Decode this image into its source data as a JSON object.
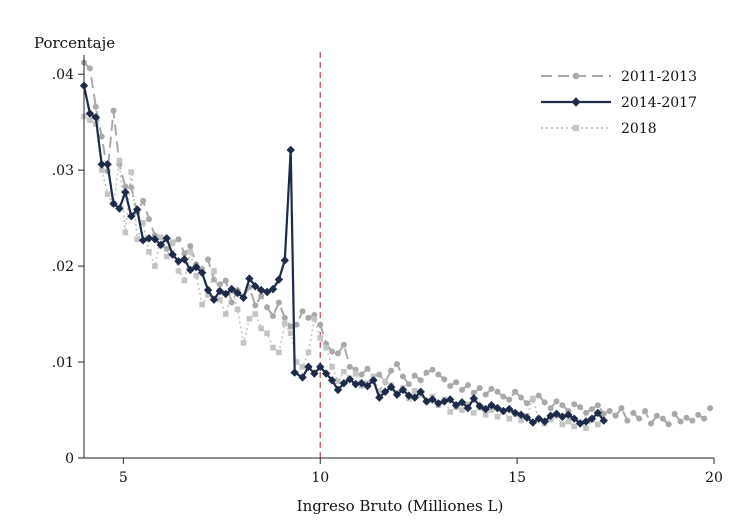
{
  "chart_data": {
    "type": "line",
    "ylabel": "Porcentaje",
    "xlabel": "Ingreso Bruto (Milliones L)",
    "xlim": [
      4,
      20
    ],
    "ylim": [
      0,
      0.042
    ],
    "x_ticks": [
      {
        "value": 5,
        "label": "5"
      },
      {
        "value": 10,
        "label": "10"
      },
      {
        "value": 15,
        "label": "15"
      },
      {
        "value": 20,
        "label": "20"
      }
    ],
    "y_ticks": [
      {
        "value": 0,
        "label": "0"
      },
      {
        "value": 0.01,
        "label": ".01"
      },
      {
        "value": 0.02,
        "label": ".02"
      },
      {
        "value": 0.03,
        "label": ".03"
      },
      {
        "value": 0.04,
        "label": ".04"
      }
    ],
    "reference_line": {
      "x": 10,
      "style": "dashed",
      "color": "#c0505a"
    },
    "legend_position": "top-right",
    "grid": false,
    "series": [
      {
        "name": "2011-2013",
        "color": "#a8a8a8",
        "line_style": "dashed",
        "marker": "circle",
        "points": [
          [
            4.0,
            0.0412
          ],
          [
            4.15,
            0.0406
          ],
          [
            4.3,
            0.0366
          ],
          [
            4.45,
            0.0335
          ],
          [
            4.6,
            0.0299
          ],
          [
            4.75,
            0.0362
          ],
          [
            4.9,
            0.0306
          ],
          [
            5.05,
            0.0283
          ],
          [
            5.2,
            0.0282
          ],
          [
            5.35,
            0.0256
          ],
          [
            5.5,
            0.0268
          ],
          [
            5.65,
            0.0249
          ],
          [
            5.8,
            0.0232
          ],
          [
            5.95,
            0.0222
          ],
          [
            6.1,
            0.0218
          ],
          [
            6.25,
            0.0224
          ],
          [
            6.4,
            0.0228
          ],
          [
            6.55,
            0.0213
          ],
          [
            6.7,
            0.0221
          ],
          [
            6.85,
            0.0202
          ],
          [
            7.0,
            0.0197
          ],
          [
            7.15,
            0.0207
          ],
          [
            7.3,
            0.0186
          ],
          [
            7.45,
            0.0181
          ],
          [
            7.6,
            0.0185
          ],
          [
            7.75,
            0.0162
          ],
          [
            7.9,
            0.0175
          ],
          [
            8.05,
            0.0168
          ],
          [
            8.2,
            0.0178
          ],
          [
            8.35,
            0.0159
          ],
          [
            8.5,
            0.0169
          ],
          [
            8.65,
            0.0157
          ],
          [
            8.8,
            0.0148
          ],
          [
            8.95,
            0.0162
          ],
          [
            9.1,
            0.0146
          ],
          [
            9.25,
            0.0137
          ],
          [
            9.4,
            0.0139
          ],
          [
            9.55,
            0.0153
          ],
          [
            9.7,
            0.0146
          ],
          [
            9.85,
            0.0149
          ],
          [
            10.0,
            0.0139
          ],
          [
            10.15,
            0.0119
          ],
          [
            10.3,
            0.0111
          ],
          [
            10.45,
            0.0109
          ],
          [
            10.6,
            0.0118
          ],
          [
            10.75,
            0.0095
          ],
          [
            10.9,
            0.0092
          ],
          [
            11.05,
            0.0087
          ],
          [
            11.2,
            0.0093
          ],
          [
            11.35,
            0.0085
          ],
          [
            11.5,
            0.0087
          ],
          [
            11.65,
            0.0079
          ],
          [
            11.8,
            0.0091
          ],
          [
            11.95,
            0.0098
          ],
          [
            12.1,
            0.0085
          ],
          [
            12.25,
            0.0077
          ],
          [
            12.4,
            0.0086
          ],
          [
            12.55,
            0.0081
          ],
          [
            12.7,
            0.0089
          ],
          [
            12.85,
            0.0092
          ],
          [
            13.0,
            0.0087
          ],
          [
            13.15,
            0.0082
          ],
          [
            13.3,
            0.0075
          ],
          [
            13.45,
            0.0079
          ],
          [
            13.6,
            0.0071
          ],
          [
            13.75,
            0.0076
          ],
          [
            13.9,
            0.0068
          ],
          [
            14.05,
            0.0073
          ],
          [
            14.2,
            0.0066
          ],
          [
            14.35,
            0.0072
          ],
          [
            14.5,
            0.0069
          ],
          [
            14.65,
            0.0064
          ],
          [
            14.8,
            0.0061
          ],
          [
            14.95,
            0.0069
          ],
          [
            15.1,
            0.0063
          ],
          [
            15.25,
            0.0057
          ],
          [
            15.4,
            0.0061
          ],
          [
            15.55,
            0.0065
          ],
          [
            15.7,
            0.0058
          ],
          [
            15.85,
            0.0052
          ],
          [
            16.0,
            0.0059
          ],
          [
            16.15,
            0.0055
          ],
          [
            16.3,
            0.0049
          ],
          [
            16.45,
            0.0056
          ],
          [
            16.6,
            0.0053
          ],
          [
            16.75,
            0.0047
          ],
          [
            16.9,
            0.0051
          ],
          [
            17.05,
            0.0055
          ],
          [
            17.2,
            0.0046
          ],
          [
            17.35,
            0.0049
          ],
          [
            17.5,
            0.0044
          ],
          [
            17.65,
            0.0052
          ],
          [
            17.8,
            0.0039
          ],
          [
            17.95,
            0.0047
          ],
          [
            18.1,
            0.0041
          ],
          [
            18.25,
            0.0049
          ],
          [
            18.4,
            0.0036
          ],
          [
            18.55,
            0.0044
          ],
          [
            18.7,
            0.0041
          ],
          [
            18.85,
            0.0035
          ],
          [
            19.0,
            0.0046
          ],
          [
            19.15,
            0.0038
          ],
          [
            19.3,
            0.0042
          ],
          [
            19.45,
            0.0039
          ],
          [
            19.6,
            0.0045
          ],
          [
            19.75,
            0.0041
          ],
          [
            19.9,
            0.0052
          ]
        ]
      },
      {
        "name": "2014-2017",
        "color": "#1c2b4a",
        "line_style": "solid",
        "marker": "diamond",
        "points": [
          [
            4.0,
            0.0388
          ],
          [
            4.15,
            0.0359
          ],
          [
            4.3,
            0.0355
          ],
          [
            4.45,
            0.0306
          ],
          [
            4.6,
            0.0306
          ],
          [
            4.75,
            0.0265
          ],
          [
            4.9,
            0.026
          ],
          [
            5.05,
            0.0277
          ],
          [
            5.2,
            0.0252
          ],
          [
            5.35,
            0.0259
          ],
          [
            5.5,
            0.0227
          ],
          [
            5.65,
            0.0229
          ],
          [
            5.8,
            0.0228
          ],
          [
            5.95,
            0.0222
          ],
          [
            6.1,
            0.0229
          ],
          [
            6.25,
            0.0212
          ],
          [
            6.4,
            0.0205
          ],
          [
            6.55,
            0.0207
          ],
          [
            6.7,
            0.0196
          ],
          [
            6.85,
            0.0199
          ],
          [
            7.0,
            0.0193
          ],
          [
            7.15,
            0.0175
          ],
          [
            7.3,
            0.0165
          ],
          [
            7.45,
            0.0174
          ],
          [
            7.6,
            0.0171
          ],
          [
            7.75,
            0.0176
          ],
          [
            7.9,
            0.0172
          ],
          [
            8.05,
            0.0167
          ],
          [
            8.2,
            0.0187
          ],
          [
            8.35,
            0.0179
          ],
          [
            8.5,
            0.0175
          ],
          [
            8.65,
            0.0173
          ],
          [
            8.8,
            0.0176
          ],
          [
            8.95,
            0.0186
          ],
          [
            9.1,
            0.0206
          ],
          [
            9.25,
            0.0321
          ],
          [
            9.35,
            0.0089
          ],
          [
            9.55,
            0.0084
          ],
          [
            9.7,
            0.0095
          ],
          [
            9.85,
            0.0088
          ],
          [
            10.0,
            0.0095
          ],
          [
            10.15,
            0.0088
          ],
          [
            10.3,
            0.0081
          ],
          [
            10.45,
            0.0071
          ],
          [
            10.6,
            0.0078
          ],
          [
            10.75,
            0.0082
          ],
          [
            10.9,
            0.0077
          ],
          [
            11.05,
            0.0078
          ],
          [
            11.2,
            0.0075
          ],
          [
            11.35,
            0.0081
          ],
          [
            11.5,
            0.0063
          ],
          [
            11.65,
            0.0069
          ],
          [
            11.8,
            0.0074
          ],
          [
            11.95,
            0.0066
          ],
          [
            12.1,
            0.0071
          ],
          [
            12.25,
            0.0065
          ],
          [
            12.4,
            0.0063
          ],
          [
            12.55,
            0.0069
          ],
          [
            12.7,
            0.0059
          ],
          [
            12.85,
            0.0061
          ],
          [
            13.0,
            0.0057
          ],
          [
            13.15,
            0.0059
          ],
          [
            13.3,
            0.0061
          ],
          [
            13.45,
            0.0055
          ],
          [
            13.6,
            0.0058
          ],
          [
            13.75,
            0.0052
          ],
          [
            13.9,
            0.0062
          ],
          [
            14.05,
            0.0054
          ],
          [
            14.2,
            0.0051
          ],
          [
            14.35,
            0.0055
          ],
          [
            14.5,
            0.0052
          ],
          [
            14.65,
            0.0049
          ],
          [
            14.8,
            0.0051
          ],
          [
            14.95,
            0.0047
          ],
          [
            15.1,
            0.0045
          ],
          [
            15.25,
            0.0042
          ],
          [
            15.4,
            0.0037
          ],
          [
            15.55,
            0.0041
          ],
          [
            15.7,
            0.0038
          ],
          [
            15.85,
            0.0044
          ],
          [
            16.0,
            0.0046
          ],
          [
            16.15,
            0.0043
          ],
          [
            16.3,
            0.0045
          ],
          [
            16.45,
            0.0041
          ],
          [
            16.6,
            0.0036
          ],
          [
            16.75,
            0.0038
          ],
          [
            16.9,
            0.0041
          ],
          [
            17.05,
            0.0047
          ],
          [
            17.2,
            0.0039
          ]
        ]
      },
      {
        "name": "2018",
        "color": "#c4c4c4",
        "line_style": "dotted",
        "marker": "square",
        "points": [
          [
            4.0,
            0.0356
          ],
          [
            4.15,
            0.0352
          ],
          [
            4.3,
            0.0348
          ],
          [
            4.45,
            0.03
          ],
          [
            4.6,
            0.0275
          ],
          [
            4.75,
            0.0265
          ],
          [
            4.9,
            0.031
          ],
          [
            5.05,
            0.0235
          ],
          [
            5.2,
            0.0298
          ],
          [
            5.35,
            0.0228
          ],
          [
            5.5,
            0.0245
          ],
          [
            5.65,
            0.0215
          ],
          [
            5.8,
            0.02
          ],
          [
            5.95,
            0.023
          ],
          [
            6.1,
            0.021
          ],
          [
            6.25,
            0.0225
          ],
          [
            6.4,
            0.0195
          ],
          [
            6.55,
            0.0185
          ],
          [
            6.7,
            0.0215
          ],
          [
            6.85,
            0.019
          ],
          [
            7.0,
            0.016
          ],
          [
            7.15,
            0.017
          ],
          [
            7.3,
            0.0195
          ],
          [
            7.45,
            0.0165
          ],
          [
            7.6,
            0.015
          ],
          [
            7.75,
            0.0175
          ],
          [
            7.9,
            0.0155
          ],
          [
            8.05,
            0.012
          ],
          [
            8.2,
            0.0145
          ],
          [
            8.35,
            0.015
          ],
          [
            8.5,
            0.0135
          ],
          [
            8.65,
            0.013
          ],
          [
            8.8,
            0.0115
          ],
          [
            8.95,
            0.011
          ],
          [
            9.1,
            0.014
          ],
          [
            9.25,
            0.013
          ],
          [
            9.4,
            0.01
          ],
          [
            9.55,
            0.0095
          ],
          [
            9.7,
            0.011
          ],
          [
            9.85,
            0.0145
          ],
          [
            10.0,
            0.0125
          ],
          [
            10.15,
            0.0115
          ],
          [
            10.3,
            0.0095
          ],
          [
            10.45,
            0.008
          ],
          [
            10.6,
            0.009
          ],
          [
            10.75,
            0.0083
          ],
          [
            10.9,
            0.0088
          ],
          [
            11.05,
            0.0075
          ],
          [
            11.2,
            0.0078
          ],
          [
            11.35,
            0.0085
          ],
          [
            11.5,
            0.007
          ],
          [
            11.65,
            0.008
          ],
          [
            11.8,
            0.0076
          ],
          [
            11.95,
            0.0068
          ],
          [
            12.1,
            0.0073
          ],
          [
            12.25,
            0.0062
          ],
          [
            12.4,
            0.007
          ],
          [
            12.55,
            0.0066
          ],
          [
            12.7,
            0.0059
          ],
          [
            12.85,
            0.0064
          ],
          [
            13.0,
            0.0055
          ],
          [
            13.15,
            0.0061
          ],
          [
            13.3,
            0.0048
          ],
          [
            13.45,
            0.0053
          ],
          [
            13.6,
            0.005
          ],
          [
            13.75,
            0.0056
          ],
          [
            13.9,
            0.0047
          ],
          [
            14.05,
            0.0053
          ],
          [
            14.2,
            0.0045
          ],
          [
            14.35,
            0.005
          ],
          [
            14.5,
            0.0043
          ],
          [
            14.65,
            0.0048
          ],
          [
            14.8,
            0.0041
          ],
          [
            14.95,
            0.0046
          ],
          [
            15.1,
            0.0039
          ],
          [
            15.25,
            0.0044
          ],
          [
            15.4,
            0.0062
          ],
          [
            15.55,
            0.0041
          ],
          [
            15.7,
            0.0036
          ],
          [
            15.85,
            0.004
          ],
          [
            16.0,
            0.0044
          ],
          [
            16.15,
            0.0035
          ],
          [
            16.3,
            0.0038
          ],
          [
            16.45,
            0.0033
          ],
          [
            16.6,
            0.0037
          ],
          [
            16.75,
            0.0031
          ],
          [
            16.9,
            0.004
          ],
          [
            17.05,
            0.0035
          ]
        ]
      }
    ]
  }
}
